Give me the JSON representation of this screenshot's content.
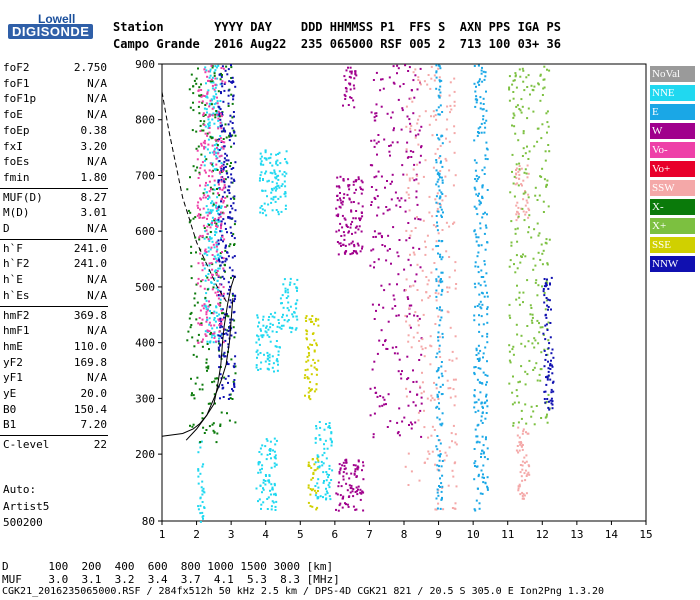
{
  "logo": {
    "top": "Lowell",
    "main": "DIGISONDE"
  },
  "header": {
    "line1": "Station       YYYY DAY    DDD HHMMSS P1  FFS S  AXN PPS IGA PS",
    "line2": "Campo Grande  2016 Aug22  235 065000 RSF 005 2  713 100 03+ 36"
  },
  "params": [
    {
      "k": "foF2",
      "v": "2.750"
    },
    {
      "k": "foF1",
      "v": "N/A"
    },
    {
      "k": "foF1p",
      "v": "N/A"
    },
    {
      "k": "foE",
      "v": "N/A"
    },
    {
      "k": "foEp",
      "v": "0.38"
    },
    {
      "k": "fxI",
      "v": "3.20"
    },
    {
      "k": "foEs",
      "v": "N/A"
    },
    {
      "k": "fmin",
      "v": "1.80"
    },
    {
      "k": "MUF(D)",
      "v": "8.27"
    },
    {
      "k": "M(D)",
      "v": "3.01"
    },
    {
      "k": "D",
      "v": "N/A"
    },
    {
      "k": "h`F",
      "v": "241.0"
    },
    {
      "k": "h`F2",
      "v": "241.0"
    },
    {
      "k": "h`E",
      "v": "N/A"
    },
    {
      "k": "h`Es",
      "v": "N/A"
    },
    {
      "k": "hmF2",
      "v": "369.8"
    },
    {
      "k": "hmF1",
      "v": "N/A"
    },
    {
      "k": "hmE",
      "v": "110.0"
    },
    {
      "k": "yF2",
      "v": "169.8"
    },
    {
      "k": "yF1",
      "v": "N/A"
    },
    {
      "k": "yE",
      "v": "20.0"
    },
    {
      "k": "B0",
      "v": "150.4"
    },
    {
      "k": "B1",
      "v": "7.20"
    },
    {
      "k": "C-level",
      "v": "22"
    }
  ],
  "auto": {
    "line1": "Auto:",
    "line2": "Artist5",
    "line3": "500200"
  },
  "legend": [
    {
      "label": "NoVal",
      "color": "#9a9a9a"
    },
    {
      "label": "NNE",
      "color": "#20d8f0"
    },
    {
      "label": "E",
      "color": "#1aa7e6"
    },
    {
      "label": "W",
      "color": "#a0008c"
    },
    {
      "label": "Vo-",
      "color": "#ee40a8"
    },
    {
      "label": "Vo+",
      "color": "#e8002a"
    },
    {
      "label": "SSW",
      "color": "#f4a8a8"
    },
    {
      "label": "X-",
      "color": "#0a7a0a"
    },
    {
      "label": "X+",
      "color": "#7cc040"
    },
    {
      "label": "SSE",
      "color": "#d0d000"
    },
    {
      "label": "NNW",
      "color": "#1010b0"
    }
  ],
  "footer": {
    "d_line": "D      100  200  400  600  800 1000 1500 3000 [km]",
    "muf_line": "MUF    3.0  3.1  3.2  3.4  3.7  4.1  5.3  8.3 [MHz]",
    "file_line": "CGK21_2016235065000.RSF / 284fx512h 50 kHz 2.5 km / DPS-4D CGK21 821 / 20.5 S 305.0 E Ion2Png 1.3.20"
  },
  "chart_data": {
    "type": "scatter",
    "xlim": [
      1,
      15
    ],
    "ylim": [
      80,
      900
    ],
    "x_ticks": [
      "1",
      "2",
      "3",
      "4",
      "5",
      "6",
      "7",
      "8",
      "9",
      "10",
      "11",
      "12",
      "13",
      "14",
      "15"
    ],
    "y_ticks": [
      "80",
      "200",
      "300",
      "400",
      "500",
      "600",
      "700",
      "800",
      "900"
    ],
    "grid": false,
    "legend_position": "right",
    "clusters": [
      {
        "series": "NNE",
        "x": [
          2.2,
          2.7
        ],
        "y": [
          400,
          900
        ]
      },
      {
        "series": "NNE",
        "x": [
          3.7,
          4.3
        ],
        "y": [
          100,
          230
        ]
      },
      {
        "series": "NNE",
        "x": [
          3.7,
          4.4
        ],
        "y": [
          350,
          460
        ]
      },
      {
        "series": "NNE",
        "x": [
          3.8,
          4.6
        ],
        "y": [
          630,
          750
        ]
      },
      {
        "series": "NNE",
        "x": [
          4.4,
          4.9
        ],
        "y": [
          420,
          520
        ]
      },
      {
        "series": "NNE",
        "x": [
          5.4,
          5.9
        ],
        "y": [
          120,
          260
        ]
      },
      {
        "series": "NNE",
        "x": [
          2.0,
          2.2
        ],
        "y": [
          80,
          230
        ]
      },
      {
        "series": "W",
        "x": [
          6.0,
          6.8
        ],
        "y": [
          100,
          200
        ]
      },
      {
        "series": "W",
        "x": [
          6.0,
          6.8
        ],
        "y": [
          560,
          700
        ]
      },
      {
        "series": "W",
        "x": [
          6.2,
          6.6
        ],
        "y": [
          820,
          900
        ]
      },
      {
        "series": "W",
        "x": [
          7.0,
          8.5
        ],
        "y": [
          230,
          900
        ]
      },
      {
        "series": "SSW",
        "x": [
          8.0,
          9.5
        ],
        "y": [
          100,
          900
        ]
      },
      {
        "series": "SSW",
        "x": [
          11.2,
          11.6
        ],
        "y": [
          120,
          250
        ]
      },
      {
        "series": "SSW",
        "x": [
          11.2,
          11.6
        ],
        "y": [
          620,
          720
        ]
      },
      {
        "series": "X-",
        "x": [
          1.7,
          3.1
        ],
        "y": [
          220,
          900
        ]
      },
      {
        "series": "NNW",
        "x": [
          2.6,
          3.1
        ],
        "y": [
          300,
          900
        ]
      },
      {
        "series": "Vo-",
        "x": [
          2.0,
          2.8
        ],
        "y": [
          400,
          900
        ]
      },
      {
        "series": "SSE",
        "x": [
          5.2,
          5.5
        ],
        "y": [
          100,
          200
        ]
      },
      {
        "series": "SSE",
        "x": [
          5.1,
          5.5
        ],
        "y": [
          300,
          450
        ]
      },
      {
        "series": "E",
        "x": [
          8.9,
          9.1
        ],
        "y": [
          100,
          900
        ]
      },
      {
        "series": "E",
        "x": [
          10.0,
          10.4
        ],
        "y": [
          100,
          900
        ]
      },
      {
        "series": "X+",
        "x": [
          11.0,
          12.2
        ],
        "y": [
          250,
          900
        ]
      },
      {
        "series": "NNW",
        "x": [
          12.0,
          12.3
        ],
        "y": [
          280,
          520
        ]
      }
    ],
    "profile_curve": {
      "x": [
        1.0,
        1.6,
        1.9,
        2.1,
        2.3,
        2.5,
        2.6,
        2.7,
        2.75,
        2.8,
        2.9,
        3.0,
        3.1
      ],
      "y": [
        232,
        237,
        245,
        255,
        270,
        290,
        320,
        360,
        400,
        430,
        470,
        500,
        520
      ]
    },
    "trace_curve": {
      "x": [
        1.7,
        2.0,
        2.3,
        2.5,
        2.7,
        2.85,
        2.95,
        3.0,
        3.05
      ],
      "y": [
        225,
        245,
        270,
        300,
        330,
        360,
        400,
        440,
        480
      ]
    },
    "dashed_curve": {
      "x": [
        1.0,
        1.2,
        1.4,
        1.6,
        1.8,
        2.0,
        2.3,
        2.6,
        2.9
      ],
      "y": [
        850,
        780,
        720,
        660,
        620,
        580,
        540,
        500,
        470
      ]
    }
  }
}
